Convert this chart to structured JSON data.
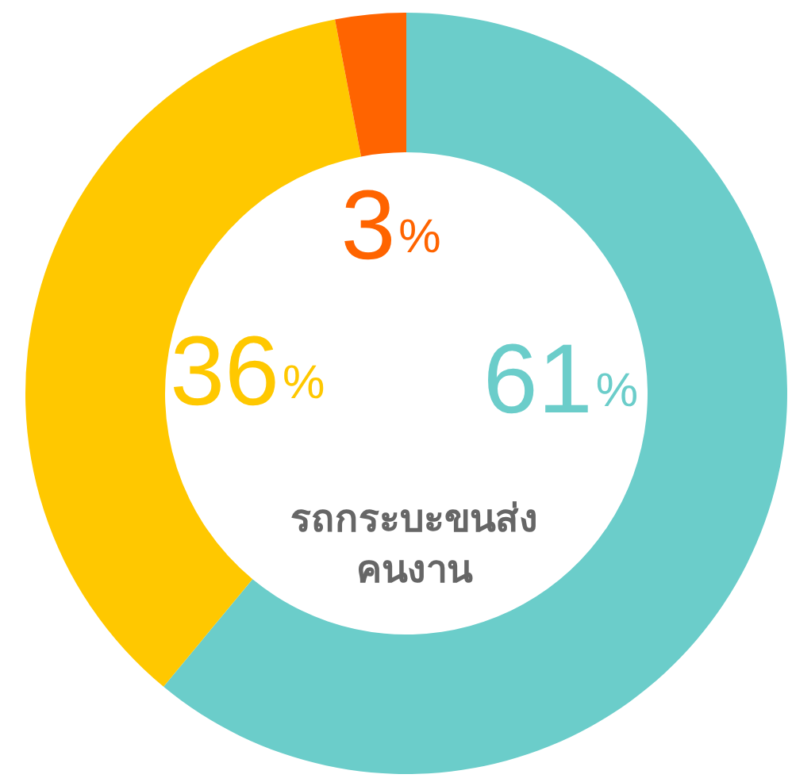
{
  "chart_data": {
    "type": "donut",
    "title": "รถกระบะขนส่ง\nคนงาน",
    "categories": [
      null,
      null,
      null
    ],
    "values": [
      61,
      36,
      3
    ],
    "colors": [
      "#6bcdca",
      "#ffc800",
      "#ff6400"
    ],
    "value_labels": [
      "61%",
      "36%",
      "3%"
    ]
  }
}
